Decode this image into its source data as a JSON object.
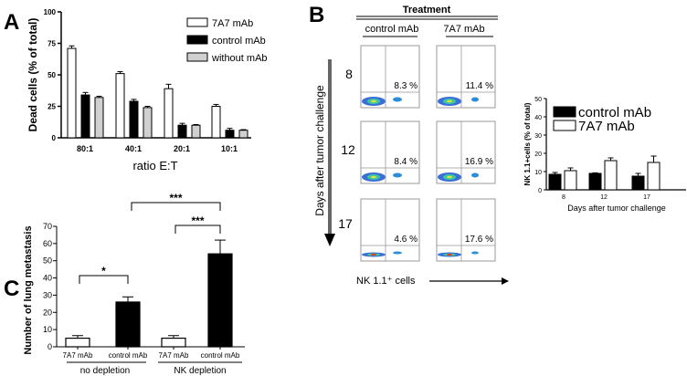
{
  "panels": {
    "a": "A",
    "b": "B",
    "c": "C"
  },
  "chart_data": [
    {
      "id": "A",
      "type": "bar",
      "ylabel": "Dead cells (% of total)",
      "xlabel": "ratio E:T",
      "categories": [
        "80:1",
        "40:1",
        "20:1",
        "10:1"
      ],
      "ylim": [
        0,
        100
      ],
      "yticks": [
        0,
        25,
        50,
        75,
        100
      ],
      "series": [
        {
          "name": "7A7 mAb",
          "color": "#ffffff",
          "values": [
            71,
            51,
            39,
            25
          ],
          "errors": [
            2,
            1.5,
            3.5,
            1.5
          ]
        },
        {
          "name": "control mAb",
          "color": "#000000",
          "values": [
            34,
            29,
            10,
            6
          ],
          "errors": [
            2,
            1.5,
            1.5,
            1.5
          ]
        },
        {
          "name": " without mAb",
          "color": "#d0d0d0",
          "values": [
            32,
            24,
            10,
            6
          ],
          "errors": [
            1,
            1,
            0.5,
            0.5
          ]
        }
      ],
      "legend": "top-right"
    },
    {
      "id": "B-flow",
      "type": "scatter",
      "title": "Treatment",
      "columns": [
        "control mAb",
        "7A7 mAb"
      ],
      "rows": [
        "8",
        "12",
        "17"
      ],
      "ylabel": "Days after tumor challenge",
      "xlabel": "NK 1.1⁺ cells",
      "percentages": [
        [
          "8.3 %",
          "11.4 %"
        ],
        [
          "8.4 %",
          "16.9 %"
        ],
        [
          "4.6 %",
          "17.6 %"
        ]
      ]
    },
    {
      "id": "B-bar",
      "type": "bar",
      "ylabel": "NK 1.1+cells (% of total)",
      "xlabel": "Days after tumor challenge",
      "categories": [
        "8",
        "12",
        "17"
      ],
      "ylim": [
        0,
        50
      ],
      "yticks": [
        0,
        10,
        20,
        30,
        40,
        50
      ],
      "series": [
        {
          "name": "control mAb",
          "color": "#000000",
          "values": [
            8.5,
            9,
            7.5
          ],
          "errors": [
            1,
            0.3,
            1.5
          ]
        },
        {
          "name": "7A7 mAb",
          "color": "#ffffff",
          "values": [
            10.5,
            16,
            15
          ],
          "errors": [
            1.5,
            1.5,
            3.5
          ]
        }
      ],
      "legend": "top-left"
    },
    {
      "id": "C",
      "type": "bar",
      "ylabel": "Number of lung metastasis",
      "categories": [
        "7A7 mAb",
        "control mAb",
        "7A7 mAb",
        "control mAb"
      ],
      "groups": [
        "no depletion",
        "NK depletion"
      ],
      "ylim": [
        0,
        70
      ],
      "yticks": [
        0,
        10,
        20,
        30,
        40,
        50,
        60,
        70
      ],
      "values": [
        5,
        26,
        5,
        54
      ],
      "errors": [
        1.5,
        3,
        1.5,
        8
      ],
      "colors": [
        "#ffffff",
        "#000000",
        "#ffffff",
        "#000000"
      ],
      "significance": [
        {
          "from": 0,
          "to": 1,
          "label": "*"
        },
        {
          "from": 1,
          "to": 3,
          "label": "***"
        },
        {
          "from": 2,
          "to": 3,
          "label": "***"
        }
      ]
    }
  ]
}
